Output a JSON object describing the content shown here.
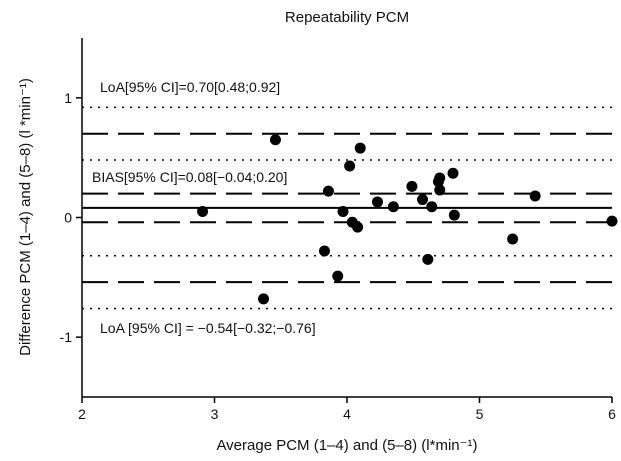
{
  "chart_data": {
    "type": "scatter",
    "title": "Repeatability PCM",
    "xlabel": "Average PCM (1–4) and (5–8) (l*min⁻¹)",
    "ylabel": "Difference PCM (1–4) and (5–8) (l *min⁻¹)",
    "xlim": [
      2,
      6
    ],
    "ylim": [
      -1.5,
      1.5
    ],
    "xticks": [
      2,
      3,
      4,
      5,
      6
    ],
    "yticks": [
      -1,
      0,
      1
    ],
    "series": [
      {
        "color": "#000000",
        "x": [
          2.91,
          3.46,
          3.37,
          3.86,
          3.83,
          3.93,
          3.97,
          4.02,
          4.04,
          4.08,
          4.1,
          4.23,
          4.35,
          4.49,
          4.57,
          4.69,
          4.61,
          4.64,
          4.7,
          4.7,
          4.8,
          4.81,
          5.25,
          5.42,
          6.0
        ],
        "values": [
          0.05,
          0.65,
          -0.68,
          0.22,
          -0.28,
          -0.49,
          0.05,
          0.43,
          -0.04,
          -0.08,
          0.58,
          0.13,
          0.09,
          0.26,
          0.15,
          0.3,
          -0.35,
          0.09,
          0.23,
          0.33,
          0.37,
          0.02,
          -0.18,
          0.18,
          -0.03
        ]
      }
    ],
    "reference_lines": [
      {
        "value": 0.92,
        "style": "dotted"
      },
      {
        "value": 0.7,
        "style": "dashed"
      },
      {
        "value": 0.48,
        "style": "dotted"
      },
      {
        "value": 0.2,
        "style": "dashed"
      },
      {
        "value": 0.08,
        "style": "solid"
      },
      {
        "value": -0.04,
        "style": "dashed"
      },
      {
        "value": -0.32,
        "style": "dotted"
      },
      {
        "value": -0.54,
        "style": "dashed"
      },
      {
        "value": -0.76,
        "style": "dotted"
      }
    ],
    "annotations": [
      "LoA[95% CI]=0.70[0.48;0.92]",
      "BIAS[95% CI]=0.08[−0.04;0.20]",
      "LoA [95% CI] = −0.54[−0.32;−0.76]"
    ]
  }
}
